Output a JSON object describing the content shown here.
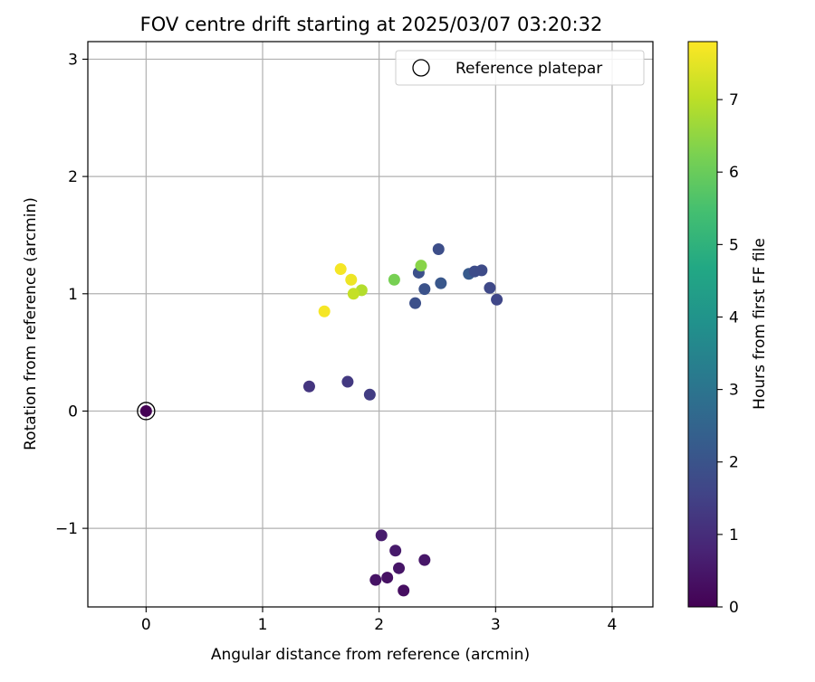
{
  "chart_data": {
    "type": "scatter",
    "title": "FOV centre drift starting at 2025/03/07 03:20:32",
    "xlabel": "Angular distance from reference (arcmin)",
    "ylabel": "Rotation from reference (arcmin)",
    "xlim": [
      -0.5,
      4.35
    ],
    "ylim": [
      -1.67,
      3.15
    ],
    "xticks": [
      0,
      1,
      2,
      3,
      4
    ],
    "xtick_labels": [
      "0",
      "1",
      "2",
      "3",
      "4"
    ],
    "yticks": [
      -1,
      0,
      1,
      2,
      3
    ],
    "ytick_labels": [
      "−1",
      "0",
      "1",
      "2",
      "3"
    ],
    "grid": true,
    "legend": {
      "position": "top-right",
      "label": "Reference platepar"
    },
    "reference_point": {
      "x": 0,
      "y": 0
    },
    "colorbar": {
      "label": "Hours from first FF file",
      "range": [
        0,
        7.8
      ],
      "ticks": [
        0,
        1,
        2,
        3,
        4,
        5,
        6,
        7
      ],
      "tick_labels": [
        "0",
        "1",
        "2",
        "3",
        "4",
        "5",
        "6",
        "7"
      ],
      "colormap": "viridis"
    },
    "series": [
      {
        "points": [
          {
            "x": 0.0,
            "y": 0.0,
            "hours": 0.0
          },
          {
            "x": 2.21,
            "y": -1.53,
            "hours": 0.3
          },
          {
            "x": 2.07,
            "y": -1.42,
            "hours": 0.35
          },
          {
            "x": 1.97,
            "y": -1.44,
            "hours": 0.4
          },
          {
            "x": 2.17,
            "y": -1.34,
            "hours": 0.45
          },
          {
            "x": 2.39,
            "y": -1.27,
            "hours": 0.5
          },
          {
            "x": 2.14,
            "y": -1.19,
            "hours": 0.55
          },
          {
            "x": 2.02,
            "y": -1.06,
            "hours": 0.6
          },
          {
            "x": 1.4,
            "y": 0.21,
            "hours": 1.2
          },
          {
            "x": 1.73,
            "y": 0.25,
            "hours": 1.3
          },
          {
            "x": 1.92,
            "y": 0.14,
            "hours": 1.4
          },
          {
            "x": 2.31,
            "y": 0.92,
            "hours": 1.9
          },
          {
            "x": 2.34,
            "y": 1.18,
            "hours": 1.9
          },
          {
            "x": 2.39,
            "y": 1.04,
            "hours": 1.95
          },
          {
            "x": 2.51,
            "y": 1.38,
            "hours": 1.85
          },
          {
            "x": 2.53,
            "y": 1.09,
            "hours": 2.1
          },
          {
            "x": 2.77,
            "y": 1.17,
            "hours": 2.2
          },
          {
            "x": 2.82,
            "y": 1.19,
            "hours": 1.8
          },
          {
            "x": 2.88,
            "y": 1.2,
            "hours": 1.75
          },
          {
            "x": 2.95,
            "y": 1.05,
            "hours": 1.7
          },
          {
            "x": 3.01,
            "y": 0.95,
            "hours": 1.65
          },
          {
            "x": 2.13,
            "y": 1.12,
            "hours": 6.2
          },
          {
            "x": 2.36,
            "y": 1.24,
            "hours": 6.4
          },
          {
            "x": 1.85,
            "y": 1.03,
            "hours": 6.9
          },
          {
            "x": 1.78,
            "y": 1.0,
            "hours": 7.1
          },
          {
            "x": 1.67,
            "y": 1.21,
            "hours": 7.7
          },
          {
            "x": 1.76,
            "y": 1.12,
            "hours": 7.6
          },
          {
            "x": 1.53,
            "y": 0.85,
            "hours": 7.7
          }
        ]
      }
    ]
  }
}
